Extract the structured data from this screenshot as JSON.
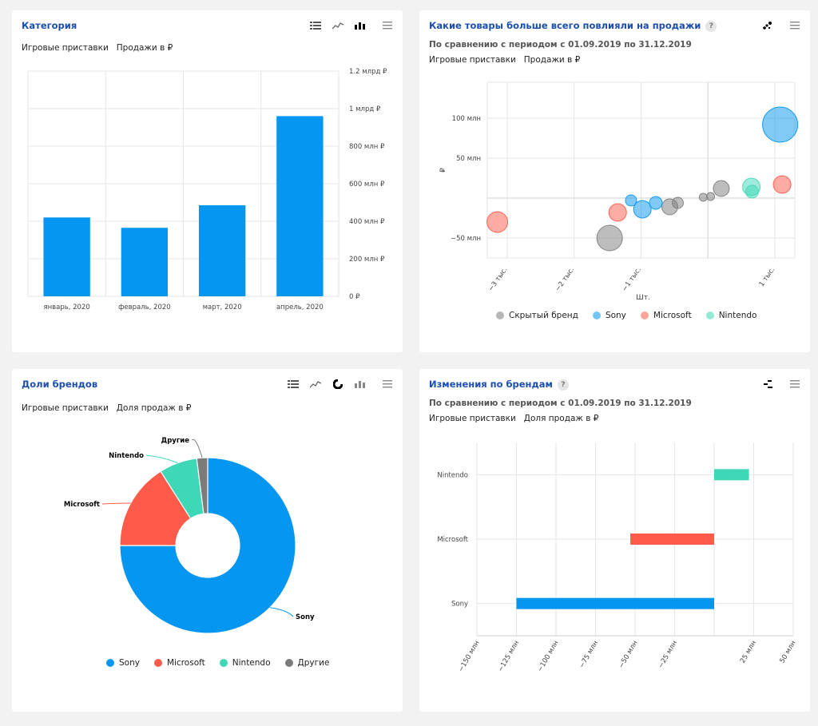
{
  "colors": {
    "sony": "#0496f1",
    "microsoft": "#ff5a4a",
    "nintendo": "#3fd8b7",
    "hidden": "#7b7b7b",
    "title": "#1a4fb0"
  },
  "card1": {
    "title": "Категория",
    "params": [
      "Игровые приставки",
      "Продажи в ₽"
    ],
    "toolbar": [
      "list-icon",
      "line-chart-icon",
      "bar-chart-icon",
      "menu-icon"
    ]
  },
  "card2": {
    "title": "Какие товары больше всего повлияли на продажи",
    "subtitle": "По сравнению с периодом с 01.09.2019 по 31.12.2019",
    "params": [
      "Игровые приставки",
      "Продажи в ₽"
    ],
    "toolbar": [
      "scatter-icon",
      "menu-icon"
    ]
  },
  "card3": {
    "title": "Доли брендов",
    "params": [
      "Игровые приставки",
      "Доля продаж в ₽"
    ],
    "toolbar": [
      "list-icon",
      "line-chart-icon",
      "donut-chart-icon",
      "bar-chart-icon",
      "menu-icon"
    ]
  },
  "card4": {
    "title": "Изменения по брендам",
    "subtitle": "По сравнению с периодом с 01.09.2019 по 31.12.2019",
    "params": [
      "Игровые приставки",
      "Доля продаж в ₽"
    ],
    "toolbar": [
      "diverging-bar-icon",
      "menu-icon"
    ]
  },
  "chart_data": [
    {
      "type": "bar",
      "categories": [
        "январь, 2020",
        "февраль, 2020",
        "март, 2020",
        "апрель, 2020"
      ],
      "values": [
        420000000,
        365000000,
        485000000,
        960000000
      ],
      "ylim": [
        0,
        1200000000
      ],
      "yticks": [
        0,
        200000000,
        400000000,
        600000000,
        800000000,
        1000000000,
        1200000000
      ],
      "ytick_labels": [
        "0 ₽",
        "200 млн ₽",
        "400 млн ₽",
        "600 млн ₽",
        "800 млн ₽",
        "1 млрд ₽",
        "1.2 млрд ₽"
      ],
      "color": "#0496f1",
      "grid": true
    },
    {
      "type": "scatter",
      "xlabel": "Шт.",
      "ylabel": "₽",
      "xlim": [
        -3300,
        1300
      ],
      "ylim": [
        -75000000,
        145000000
      ],
      "xticks": [
        -3000,
        -2000,
        -1000,
        1000
      ],
      "xtick_labels": [
        "−3 тыс.",
        "−2 тыс.",
        "−1 тыс.",
        "1 тыс."
      ],
      "yticks": [
        100000000,
        50000000,
        -50000000
      ],
      "ytick_labels": [
        "100 млн",
        "50 млн",
        "−50 млн"
      ],
      "series": [
        {
          "name": "Скрытый бренд",
          "color": "#7b7b7b",
          "points": [
            {
              "x": -1470,
              "y": -50000000,
              "r": 16
            },
            {
              "x": -570,
              "y": -11000000,
              "r": 10
            },
            {
              "x": -450,
              "y": -6000000,
              "r": 7
            },
            {
              "x": -70,
              "y": 1000000,
              "r": 5
            },
            {
              "x": 40,
              "y": 2000000,
              "r": 5
            },
            {
              "x": 200,
              "y": 12000000,
              "r": 10
            }
          ]
        },
        {
          "name": "Sony",
          "color": "#0496f1",
          "points": [
            {
              "x": 1080,
              "y": 92000000,
              "r": 22
            },
            {
              "x": -1150,
              "y": -3000000,
              "r": 7
            },
            {
              "x": -980,
              "y": -14000000,
              "r": 11
            },
            {
              "x": -780,
              "y": -6000000,
              "r": 8
            }
          ]
        },
        {
          "name": "Microsoft",
          "color": "#ff5a4a",
          "points": [
            {
              "x": -3150,
              "y": -30000000,
              "r": 13
            },
            {
              "x": -1350,
              "y": -18000000,
              "r": 11
            },
            {
              "x": 1110,
              "y": 17000000,
              "r": 11
            }
          ]
        },
        {
          "name": "Nintendo",
          "color": "#3fd8b7",
          "points": [
            {
              "x": 650,
              "y": 14000000,
              "r": 11
            },
            {
              "x": 660,
              "y": 8000000,
              "r": 8
            }
          ]
        }
      ],
      "legend": "bottom",
      "grid": true
    },
    {
      "type": "pie",
      "labels": [
        "Sony",
        "Microsoft",
        "Nintendo",
        "Другие"
      ],
      "values": [
        75,
        16,
        7,
        2
      ],
      "colors": [
        "#0496f1",
        "#ff5a4a",
        "#3fd8b7",
        "#7b7b7b"
      ],
      "donut": true,
      "legend": "bottom"
    },
    {
      "type": "bar",
      "orientation": "horizontal",
      "categories": [
        "Nintendo",
        "Microsoft",
        "Sony"
      ],
      "values": [
        22000000,
        -53000000,
        -125000000
      ],
      "colors": [
        "#3fd8b7",
        "#ff5a4a",
        "#0496f1"
      ],
      "xlim": [
        -150000000,
        50000000
      ],
      "xticks": [
        -150000000,
        -125000000,
        -100000000,
        -75000000,
        -50000000,
        -25000000,
        25000000,
        50000000
      ],
      "xtick_labels": [
        "−150 млн",
        "−125 млн",
        "−100 млн",
        "−75 млн",
        "−50 млн",
        "−25 млн",
        "25 млн",
        "50 млн"
      ],
      "grid": true
    }
  ]
}
